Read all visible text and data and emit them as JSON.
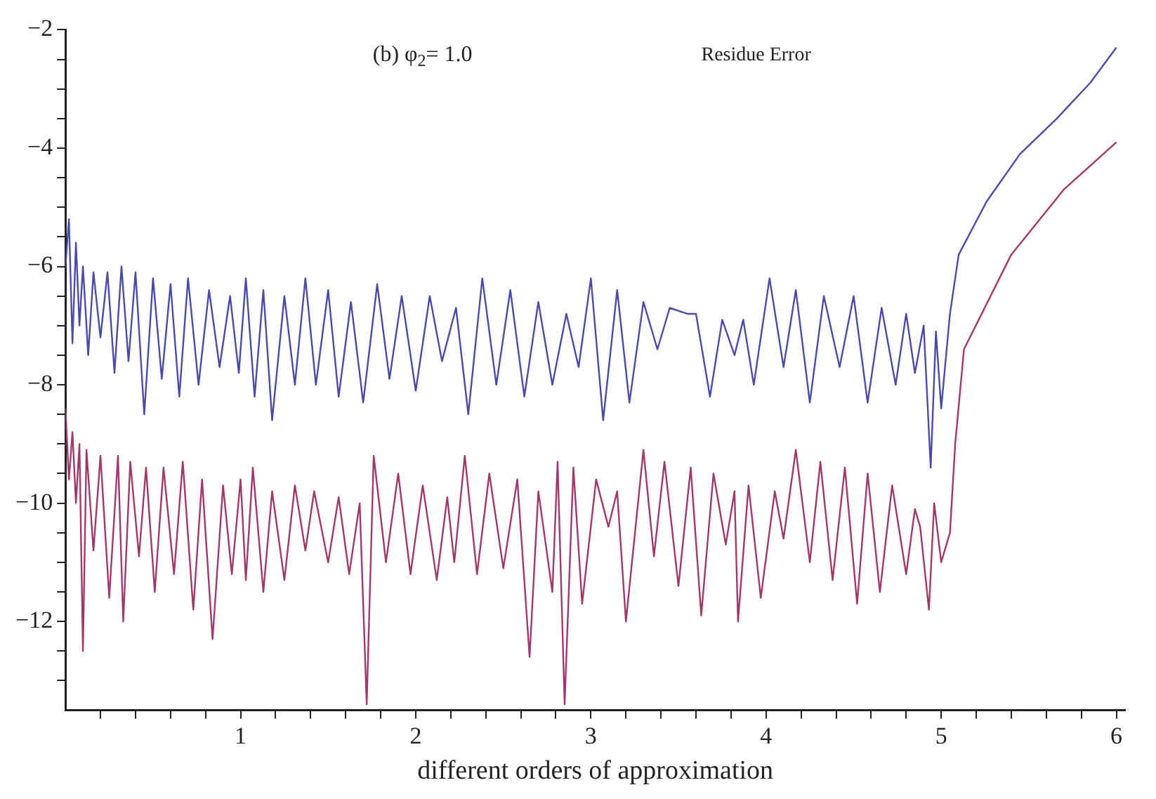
{
  "chart_data": {
    "type": "line",
    "xlabel": "different orders of approximation",
    "annotations": [
      "(b) φ$_{2}$= 1.0",
      "Residue Error"
    ],
    "xlim": [
      0,
      6.05
    ],
    "ylim": [
      -13.5,
      -2
    ],
    "xticks": [
      {
        "value": 0.2,
        "label": null
      },
      {
        "value": 0.4,
        "label": null
      },
      {
        "value": 0.6,
        "label": null
      },
      {
        "value": 0.8,
        "label": null
      },
      1,
      {
        "value": 1.2,
        "label": null
      },
      {
        "value": 1.4,
        "label": null
      },
      {
        "value": 1.6,
        "label": null
      },
      {
        "value": 1.8,
        "label": null
      },
      2,
      {
        "value": 2.2,
        "label": null
      },
      {
        "value": 2.4,
        "label": null
      },
      {
        "value": 2.6,
        "label": null
      },
      {
        "value": 2.8,
        "label": null
      },
      3,
      {
        "value": 3.2,
        "label": null
      },
      {
        "value": 3.4,
        "label": null
      },
      {
        "value": 3.6,
        "label": null
      },
      {
        "value": 3.8,
        "label": null
      },
      4,
      {
        "value": 4.2,
        "label": null
      },
      {
        "value": 4.4,
        "label": null
      },
      {
        "value": 4.6,
        "label": null
      },
      {
        "value": 4.8,
        "label": null
      },
      5,
      {
        "value": 5.2,
        "label": null
      },
      {
        "value": 5.4,
        "label": null
      },
      {
        "value": 5.6,
        "label": null
      },
      {
        "value": 5.8,
        "label": null
      },
      6
    ],
    "yticks": [
      {
        "value": -13,
        "label": null
      },
      {
        "value": -12.5,
        "label": null
      },
      -12,
      {
        "value": -11.5,
        "label": null
      },
      {
        "value": -11,
        "label": null
      },
      {
        "value": -10.5,
        "label": null
      },
      -10,
      {
        "value": -9.5,
        "label": null
      },
      {
        "value": -9,
        "label": null
      },
      {
        "value": -8.5,
        "label": null
      },
      -8,
      {
        "value": -7.5,
        "label": null
      },
      {
        "value": -7,
        "label": null
      },
      {
        "value": -6.5,
        "label": null
      },
      -6,
      {
        "value": -5.5,
        "label": null
      },
      {
        "value": -5,
        "label": null
      },
      {
        "value": -4.5,
        "label": null
      },
      -4,
      {
        "value": -3.5,
        "label": null
      },
      {
        "value": -3,
        "label": null
      },
      {
        "value": -2.5,
        "label": null
      },
      -2
    ],
    "grid": false,
    "legend": false,
    "marker": "none",
    "line_style": "solid",
    "series": [
      {
        "color": "#4a4aa8",
        "x": [
          0,
          0.02,
          0.04,
          0.06,
          0.08,
          0.1,
          0.13,
          0.16,
          0.2,
          0.24,
          0.28,
          0.32,
          0.36,
          0.4,
          0.45,
          0.5,
          0.55,
          0.6,
          0.65,
          0.7,
          0.76,
          0.82,
          0.88,
          0.94,
          0.99,
          1.03,
          1.08,
          1.13,
          1.18,
          1.25,
          1.31,
          1.37,
          1.43,
          1.5,
          1.56,
          1.63,
          1.7,
          1.78,
          1.85,
          1.92,
          2.0,
          2.08,
          2.15,
          2.23,
          2.3,
          2.38,
          2.46,
          2.54,
          2.62,
          2.7,
          2.78,
          2.86,
          2.93,
          3.0,
          3.07,
          3.15,
          3.22,
          3.3,
          3.38,
          3.45,
          3.55,
          3.6,
          3.68,
          3.75,
          3.82,
          3.87,
          3.93,
          4.02,
          4.1,
          4.17,
          4.25,
          4.33,
          4.42,
          4.5,
          4.58,
          4.66,
          4.74,
          4.8,
          4.85,
          4.9,
          4.94,
          4.97,
          5.0,
          5.05,
          5.1,
          5.26,
          5.45,
          5.66,
          5.85,
          6.0
        ],
        "values": [
          -6.0,
          -5.2,
          -7.3,
          -5.6,
          -7.0,
          -6.0,
          -7.5,
          -6.1,
          -7.2,
          -6.1,
          -7.8,
          -6.0,
          -7.6,
          -6.1,
          -8.5,
          -6.2,
          -7.9,
          -6.3,
          -8.2,
          -6.2,
          -8.0,
          -6.4,
          -7.7,
          -6.5,
          -7.8,
          -6.2,
          -8.2,
          -6.4,
          -8.6,
          -6.5,
          -8.0,
          -6.2,
          -8.0,
          -6.4,
          -8.2,
          -6.6,
          -8.3,
          -6.3,
          -7.9,
          -6.5,
          -8.1,
          -6.5,
          -7.6,
          -6.7,
          -8.5,
          -6.2,
          -8.0,
          -6.4,
          -8.2,
          -6.6,
          -8.0,
          -6.8,
          -7.7,
          -6.2,
          -8.6,
          -6.4,
          -8.3,
          -6.6,
          -7.4,
          -6.7,
          -6.8,
          -6.8,
          -8.2,
          -6.9,
          -7.5,
          -6.9,
          -8.0,
          -6.2,
          -7.7,
          -6.4,
          -8.3,
          -6.5,
          -7.7,
          -6.5,
          -8.3,
          -6.7,
          -8.0,
          -6.8,
          -7.8,
          -7.0,
          -9.4,
          -7.1,
          -8.4,
          -6.8,
          -5.8,
          -4.9,
          -4.1,
          -3.5,
          -2.9,
          -2.3
        ]
      },
      {
        "color": "#a0386a",
        "x": [
          0,
          0.02,
          0.04,
          0.06,
          0.08,
          0.1,
          0.12,
          0.16,
          0.2,
          0.25,
          0.3,
          0.33,
          0.37,
          0.42,
          0.46,
          0.51,
          0.56,
          0.62,
          0.67,
          0.73,
          0.78,
          0.84,
          0.9,
          0.95,
          1.0,
          1.03,
          1.07,
          1.13,
          1.18,
          1.25,
          1.31,
          1.37,
          1.42,
          1.5,
          1.56,
          1.62,
          1.68,
          1.72,
          1.76,
          1.83,
          1.9,
          1.97,
          2.04,
          2.12,
          2.18,
          2.22,
          2.28,
          2.35,
          2.42,
          2.5,
          2.58,
          2.65,
          2.7,
          2.78,
          2.81,
          2.85,
          2.9,
          2.95,
          3.03,
          3.1,
          3.15,
          3.2,
          3.3,
          3.36,
          3.42,
          3.5,
          3.57,
          3.63,
          3.7,
          3.77,
          3.82,
          3.84,
          3.9,
          3.97,
          4.05,
          4.1,
          4.17,
          4.25,
          4.31,
          4.38,
          4.45,
          4.52,
          4.58,
          4.65,
          4.72,
          4.8,
          4.85,
          4.88,
          4.93,
          4.96,
          5.0,
          5.05,
          5.08,
          5.13,
          5.4,
          5.7,
          6.0
        ],
        "values": [
          -8.4,
          -9.6,
          -8.8,
          -10.0,
          -9.0,
          -12.5,
          -9.1,
          -10.8,
          -9.2,
          -11.6,
          -9.2,
          -12.0,
          -9.3,
          -10.9,
          -9.4,
          -11.5,
          -9.4,
          -11.2,
          -9.3,
          -11.8,
          -9.6,
          -12.3,
          -9.7,
          -11.2,
          -9.6,
          -11.3,
          -9.4,
          -11.5,
          -9.8,
          -11.3,
          -9.7,
          -10.8,
          -9.8,
          -11.0,
          -9.9,
          -11.2,
          -10.0,
          -13.4,
          -9.2,
          -11.0,
          -9.5,
          -11.2,
          -9.7,
          -11.3,
          -9.9,
          -11.0,
          -9.2,
          -11.2,
          -9.5,
          -11.1,
          -9.6,
          -12.6,
          -9.8,
          -11.5,
          -9.3,
          -13.4,
          -9.4,
          -11.7,
          -9.6,
          -10.4,
          -9.8,
          -12.0,
          -9.1,
          -10.9,
          -9.3,
          -11.4,
          -9.4,
          -11.9,
          -9.5,
          -10.7,
          -9.8,
          -12.0,
          -9.7,
          -11.6,
          -9.8,
          -10.6,
          -9.1,
          -11.0,
          -9.3,
          -11.3,
          -9.4,
          -11.7,
          -9.5,
          -11.5,
          -9.7,
          -11.2,
          -10.1,
          -10.4,
          -11.8,
          -10.0,
          -11.0,
          -10.5,
          -9.0,
          -7.4,
          -5.8,
          -4.7,
          -3.9
        ]
      }
    ]
  }
}
